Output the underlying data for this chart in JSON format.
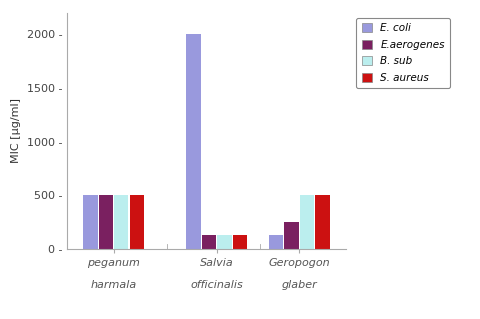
{
  "categories": [
    "peganum",
    "Salvia",
    "Geropogon"
  ],
  "subtitles": [
    "harmala",
    "officinalis",
    "glaber"
  ],
  "series": {
    "E. coli": [
      500,
      2000,
      125
    ],
    "E.aerogenes": [
      500,
      125,
      250
    ],
    "B. sub": [
      500,
      125,
      500
    ],
    "S. aureus": [
      500,
      125,
      500
    ]
  },
  "colors": {
    "E. coli": "#9999dd",
    "E.aerogenes": "#7a2060",
    "B. sub": "#bbeeee",
    "S. aureus": "#cc1111"
  },
  "ylabel": "MIC [μg/ml]",
  "ylim": [
    0,
    2200
  ],
  "yticks": [
    0,
    500,
    1000,
    1500,
    2000
  ],
  "bar_width": 0.15,
  "background": "#ffffff",
  "legend_fontsize": 7.5,
  "axis_fontsize": 8,
  "tick_fontsize": 8
}
